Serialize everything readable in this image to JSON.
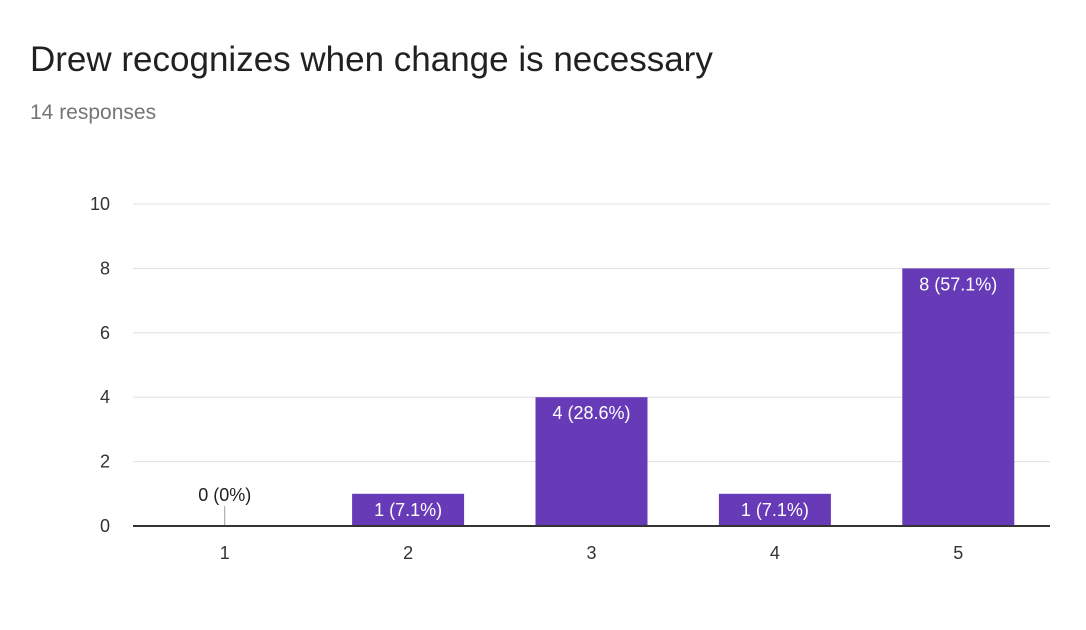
{
  "title": "Drew recognizes when change is necessary",
  "subtitle": "14 responses",
  "colors": {
    "bar": "#673ab7",
    "grid": "#e0e0e0",
    "axis": "#333333",
    "text": "#212121"
  },
  "chart_data": {
    "type": "bar",
    "categories": [
      "1",
      "2",
      "3",
      "4",
      "5"
    ],
    "values": [
      0,
      1,
      4,
      1,
      8
    ],
    "data_labels": [
      "0 (0%)",
      "1 (7.1%)",
      "4 (28.6%)",
      "1 (7.1%)",
      "8 (57.1%)"
    ],
    "yticks": [
      "0",
      "2",
      "4",
      "6",
      "8",
      "10"
    ],
    "ylim": [
      0,
      10
    ],
    "grid": true,
    "legend": "none"
  }
}
